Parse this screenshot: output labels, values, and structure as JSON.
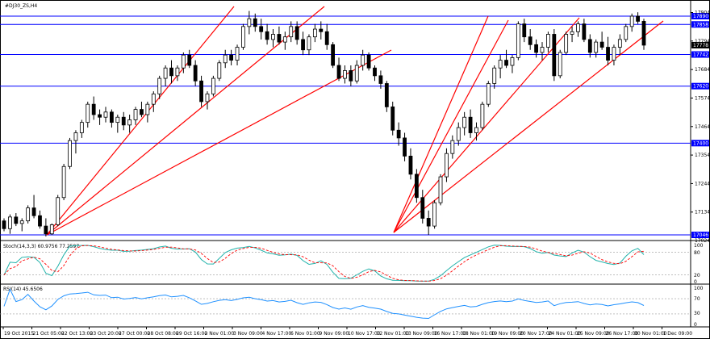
{
  "window": {
    "title": "#DJ30_ZS,H4"
  },
  "price_axis": {
    "labels": [
      "17904",
      "17794",
      "17684",
      "17574",
      "17464",
      "17354",
      "17244",
      "17134",
      "17024"
    ]
  },
  "horizontal_levels": [
    {
      "value": "17890",
      "price": 17890
    },
    {
      "value": "17858",
      "price": 17858
    },
    {
      "value": "17742",
      "price": 17742
    },
    {
      "value": "17620",
      "price": 17620
    },
    {
      "value": "17400",
      "price": 17400
    },
    {
      "value": "17046",
      "price": 17046
    }
  ],
  "last_price": {
    "label": "17778",
    "price": 17778
  },
  "stoch": {
    "title": "Stoch(14,3,3) 60.9756 77.2597",
    "axis_labels": [
      "100",
      "80",
      "20",
      "0"
    ]
  },
  "rsi": {
    "title": "RSI(14) 45.6506",
    "axis_labels": [
      "100",
      "70",
      "30",
      "0"
    ]
  },
  "time_axis": {
    "labels": [
      "19 Oct 2015",
      "21 Oct 05:00",
      "22 Oct 13:00",
      "23 Oct 20:00",
      "27 Oct 00:00",
      "28 Oct 08:00",
      "29 Oct 16:00",
      "2 Nov 01:00",
      "3 Nov 09:00",
      "4 Nov 17:00",
      "6 Nov 01:00",
      "9 Nov 09:00",
      "10 Nov 17:00",
      "12 Nov 01:00",
      "13 Nov 09:00",
      "16 Nov 17:00",
      "18 Nov 01:00",
      "19 Nov 09:00",
      "20 Nov 17:00",
      "24 Nov 01:00",
      "25 Nov 09:00",
      "26 Nov 17:00",
      "30 Nov 01:00",
      "1 Dec 09:00"
    ]
  },
  "colors": {
    "level": "#0000ff",
    "fan": "#ff0000",
    "candle": "#000000",
    "stoch_main": "#20b2aa",
    "stoch_signal": "#ff0000",
    "rsi": "#1e90ff",
    "label_bg": "#0000ff"
  },
  "candles": [
    [
      17100,
      17110,
      17060,
      17070
    ],
    [
      17070,
      17125,
      17050,
      17115
    ],
    [
      17115,
      17130,
      17080,
      17090
    ],
    [
      17090,
      17110,
      17060,
      17100
    ],
    [
      17100,
      17160,
      17090,
      17150
    ],
    [
      17150,
      17200,
      17110,
      17120
    ],
    [
      17120,
      17140,
      17070,
      17080
    ],
    [
      17080,
      17110,
      17040,
      17050
    ],
    [
      17050,
      17090,
      17046,
      17085
    ],
    [
      17085,
      17200,
      17080,
      17190
    ],
    [
      17190,
      17320,
      17180,
      17310
    ],
    [
      17310,
      17420,
      17300,
      17410
    ],
    [
      17410,
      17450,
      17360,
      17440
    ],
    [
      17440,
      17490,
      17420,
      17480
    ],
    [
      17480,
      17560,
      17460,
      17550
    ],
    [
      17550,
      17580,
      17490,
      17510
    ],
    [
      17510,
      17530,
      17470,
      17500
    ],
    [
      17500,
      17540,
      17480,
      17520
    ],
    [
      17520,
      17530,
      17460,
      17480
    ],
    [
      17480,
      17510,
      17440,
      17500
    ],
    [
      17500,
      17520,
      17450,
      17470
    ],
    [
      17470,
      17510,
      17440,
      17490
    ],
    [
      17490,
      17540,
      17470,
      17530
    ],
    [
      17530,
      17560,
      17500,
      17510
    ],
    [
      17510,
      17560,
      17480,
      17550
    ],
    [
      17550,
      17600,
      17520,
      17590
    ],
    [
      17590,
      17660,
      17570,
      17650
    ],
    [
      17650,
      17700,
      17620,
      17690
    ],
    [
      17690,
      17720,
      17630,
      17660
    ],
    [
      17660,
      17700,
      17640,
      17690
    ],
    [
      17690,
      17750,
      17670,
      17740
    ],
    [
      17740,
      17760,
      17690,
      17700
    ],
    [
      17700,
      17720,
      17620,
      17640
    ],
    [
      17640,
      17660,
      17540,
      17560
    ],
    [
      17560,
      17600,
      17530,
      17590
    ],
    [
      17590,
      17660,
      17580,
      17650
    ],
    [
      17650,
      17720,
      17640,
      17710
    ],
    [
      17710,
      17760,
      17690,
      17740
    ],
    [
      17740,
      17760,
      17700,
      17720
    ],
    [
      17720,
      17780,
      17700,
      17770
    ],
    [
      17770,
      17860,
      17760,
      17850
    ],
    [
      17850,
      17910,
      17820,
      17880
    ],
    [
      17880,
      17900,
      17830,
      17850
    ],
    [
      17850,
      17880,
      17800,
      17830
    ],
    [
      17830,
      17860,
      17780,
      17800
    ],
    [
      17800,
      17840,
      17770,
      17820
    ],
    [
      17820,
      17850,
      17780,
      17790
    ],
    [
      17790,
      17830,
      17760,
      17810
    ],
    [
      17810,
      17870,
      17790,
      17850
    ],
    [
      17850,
      17870,
      17780,
      17800
    ],
    [
      17800,
      17830,
      17740,
      17760
    ],
    [
      17760,
      17820,
      17740,
      17810
    ],
    [
      17810,
      17860,
      17790,
      17840
    ],
    [
      17840,
      17870,
      17800,
      17830
    ],
    [
      17830,
      17860,
      17760,
      17780
    ],
    [
      17780,
      17790,
      17690,
      17700
    ],
    [
      17700,
      17730,
      17640,
      17650
    ],
    [
      17650,
      17700,
      17630,
      17680
    ],
    [
      17680,
      17700,
      17620,
      17640
    ],
    [
      17640,
      17720,
      17630,
      17700
    ],
    [
      17700,
      17760,
      17680,
      17740
    ],
    [
      17740,
      17750,
      17680,
      17690
    ],
    [
      17690,
      17700,
      17640,
      17660
    ],
    [
      17660,
      17680,
      17610,
      17630
    ],
    [
      17630,
      17640,
      17520,
      17540
    ],
    [
      17540,
      17560,
      17430,
      17450
    ],
    [
      17450,
      17480,
      17390,
      17420
    ],
    [
      17420,
      17440,
      17330,
      17350
    ],
    [
      17350,
      17380,
      17260,
      17280
    ],
    [
      17280,
      17300,
      17170,
      17190
    ],
    [
      17190,
      17220,
      17090,
      17110
    ],
    [
      17110,
      17140,
      17046,
      17080
    ],
    [
      17080,
      17180,
      17070,
      17170
    ],
    [
      17170,
      17280,
      17160,
      17270
    ],
    [
      17270,
      17380,
      17250,
      17360
    ],
    [
      17360,
      17430,
      17340,
      17410
    ],
    [
      17410,
      17480,
      17390,
      17460
    ],
    [
      17460,
      17520,
      17430,
      17500
    ],
    [
      17500,
      17530,
      17420,
      17440
    ],
    [
      17440,
      17480,
      17410,
      17460
    ],
    [
      17460,
      17560,
      17450,
      17550
    ],
    [
      17550,
      17640,
      17540,
      17630
    ],
    [
      17630,
      17700,
      17610,
      17690
    ],
    [
      17690,
      17740,
      17650,
      17720
    ],
    [
      17720,
      17760,
      17690,
      17700
    ],
    [
      17700,
      17740,
      17670,
      17730
    ],
    [
      17730,
      17870,
      17720,
      17860
    ],
    [
      17860,
      17880,
      17790,
      17810
    ],
    [
      17810,
      17840,
      17760,
      17780
    ],
    [
      17780,
      17800,
      17730,
      17750
    ],
    [
      17750,
      17790,
      17720,
      17770
    ],
    [
      17770,
      17830,
      17750,
      17820
    ],
    [
      17820,
      17840,
      17640,
      17660
    ],
    [
      17660,
      17760,
      17650,
      17750
    ],
    [
      17750,
      17830,
      17740,
      17820
    ],
    [
      17820,
      17850,
      17790,
      17830
    ],
    [
      17830,
      17870,
      17810,
      17860
    ],
    [
      17860,
      17880,
      17790,
      17800
    ],
    [
      17800,
      17820,
      17730,
      17750
    ],
    [
      17750,
      17800,
      17730,
      17790
    ],
    [
      17790,
      17830,
      17760,
      17770
    ],
    [
      17770,
      17810,
      17700,
      17720
    ],
    [
      17720,
      17780,
      17700,
      17770
    ],
    [
      17770,
      17820,
      17740,
      17800
    ],
    [
      17800,
      17860,
      17790,
      17850
    ],
    [
      17850,
      17900,
      17830,
      17890
    ],
    [
      17890,
      17905,
      17860,
      17870
    ],
    [
      17870,
      17880,
      17760,
      17778
    ]
  ]
}
